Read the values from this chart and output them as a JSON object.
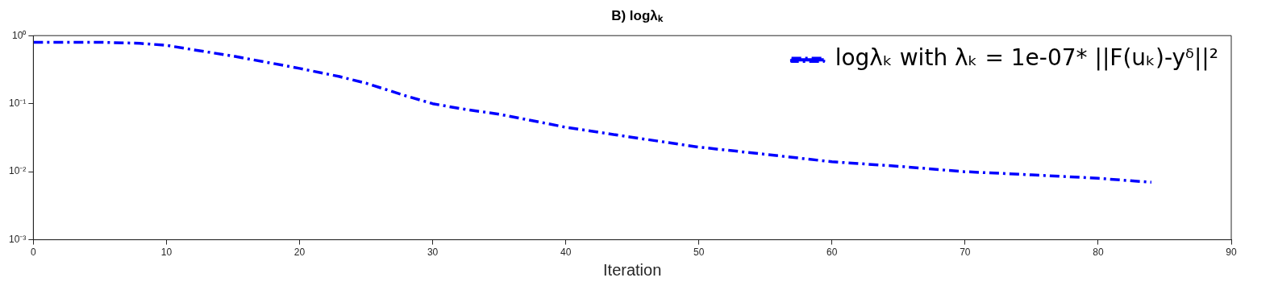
{
  "chart_data": {
    "type": "line",
    "title": "B) logλₖ",
    "xlabel": "Iteration",
    "x": [
      0,
      5,
      8,
      10,
      12,
      15,
      18,
      20,
      23,
      25,
      28,
      30,
      32,
      35,
      40,
      45,
      50,
      55,
      60,
      65,
      70,
      75,
      80,
      84
    ],
    "series": [
      {
        "name": "logλₖ with λₖ = 1e-07* ||F(uₖ)-yᵟ||²",
        "color": "#0000ff",
        "values": [
          0.8,
          0.8,
          0.77,
          0.72,
          0.62,
          0.5,
          0.39,
          0.33,
          0.25,
          0.2,
          0.13,
          0.1,
          0.085,
          0.07,
          0.045,
          0.032,
          0.023,
          0.018,
          0.014,
          0.012,
          0.01,
          0.009,
          0.008,
          0.007
        ]
      }
    ],
    "xlim": [
      0,
      90
    ],
    "xticks": [
      0,
      10,
      20,
      30,
      40,
      50,
      60,
      70,
      80,
      90
    ],
    "ylim": [
      0.001,
      1
    ],
    "yticks": [
      {
        "value": 0.001,
        "label": "10⁻³"
      },
      {
        "value": 0.01,
        "label": "10⁻²"
      },
      {
        "value": 0.1,
        "label": "10⁻¹"
      },
      {
        "value": 1,
        "label": "10⁰"
      }
    ],
    "log": "y",
    "grid": false,
    "legend": "top right",
    "marker": "none",
    "line_style": "dashed"
  }
}
